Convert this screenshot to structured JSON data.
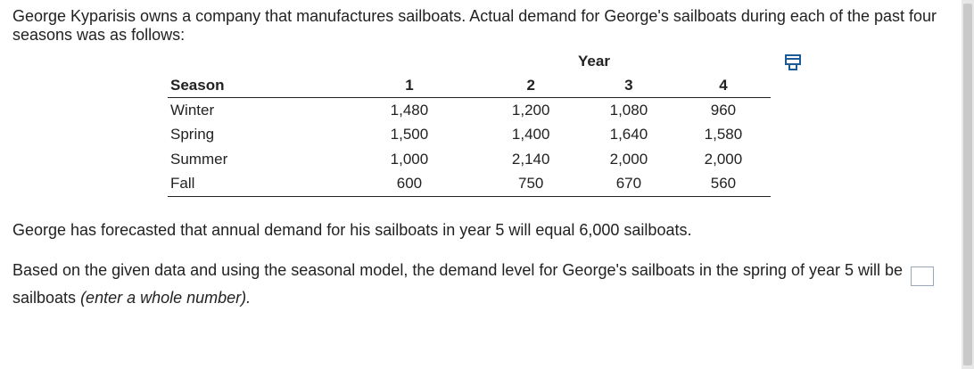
{
  "problem": {
    "intro": "George Kyparisis owns a company that manufactures sailboats. Actual demand for George's sailboats during each of the past four seasons was as follows:",
    "year_header": "Year",
    "table": {
      "season_header": "Season",
      "year_columns": [
        "1",
        "2",
        "3",
        "4"
      ],
      "rows": [
        {
          "season": "Winter",
          "values": [
            "1,480",
            "1,200",
            "1,080",
            "960"
          ]
        },
        {
          "season": "Spring",
          "values": [
            "1,500",
            "1,400",
            "1,640",
            "1,580"
          ]
        },
        {
          "season": "Summer",
          "values": [
            "1,000",
            "2,140",
            "2,000",
            "2,000"
          ]
        },
        {
          "season": "Fall",
          "values": [
            "600",
            "750",
            "670",
            "560"
          ]
        }
      ]
    },
    "forecast_text": "George has forecasted that annual demand for his sailboats in year 5 will equal 6,000 sailboats.",
    "question_text": "Based on the given data and using the seasonal model, the demand level for George's sailboats in the spring of year 5 will be",
    "answer_value": "",
    "unit_text": "sailboats",
    "hint_text": "(enter a whole number)."
  },
  "icons": {
    "copy": "copy-icon"
  },
  "colors": {
    "text": "#222222",
    "answer_border": "#9aa7b8",
    "icon_blue": "#1a5a96"
  }
}
